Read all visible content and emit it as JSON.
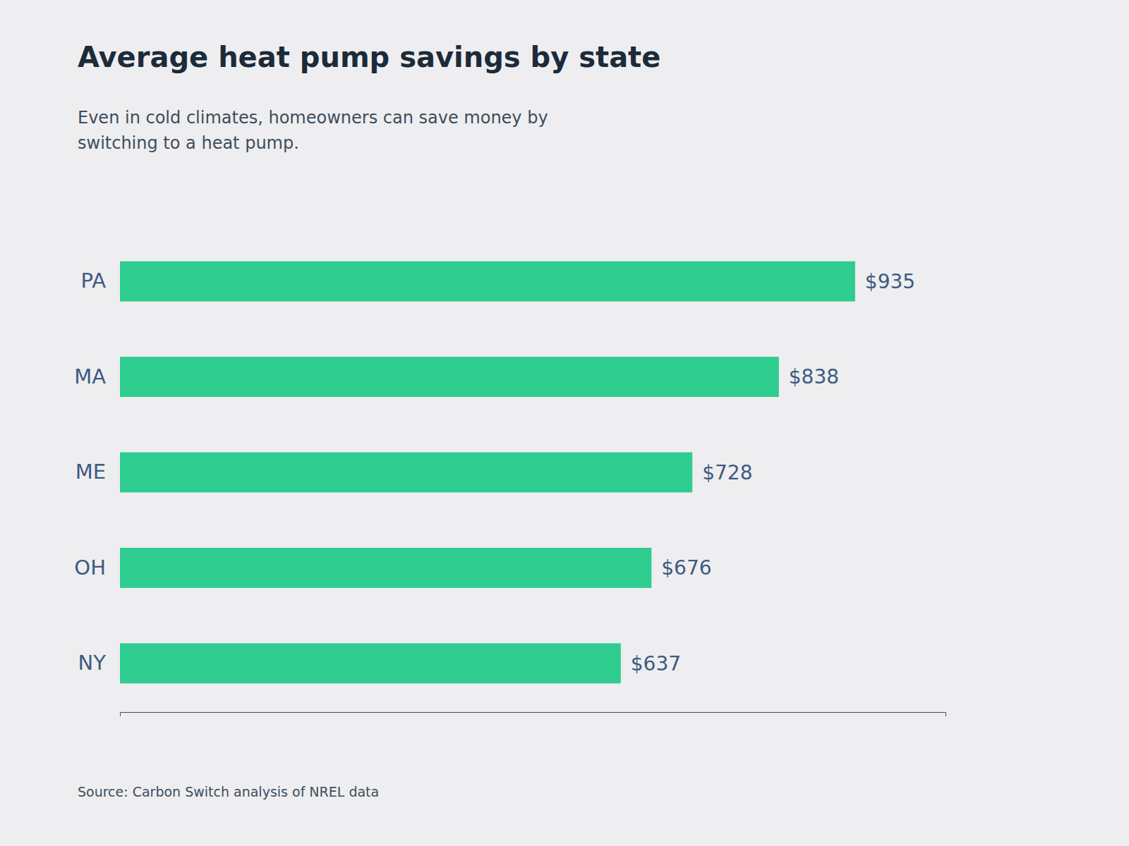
{
  "chart_data": {
    "type": "bar",
    "orientation": "horizontal",
    "title": "Average heat pump savings by state",
    "subtitle": "Even in cold climates, homeowners can save money by\nswitching to a heat pump.",
    "annotations": [
      "Source: Carbon Switch analysis of NREL data"
    ],
    "categories": [
      "PA",
      "MA",
      "ME",
      "OH",
      "NY"
    ],
    "values": [
      935,
      838,
      728,
      676,
      637
    ],
    "value_labels": [
      "$935",
      "$838",
      "$728",
      "$676",
      "$637"
    ],
    "color": "#2ECC8F",
    "xlim": [
      0,
      1050
    ],
    "grid": false,
    "data_labels": true,
    "tick_labels": "y"
  }
}
